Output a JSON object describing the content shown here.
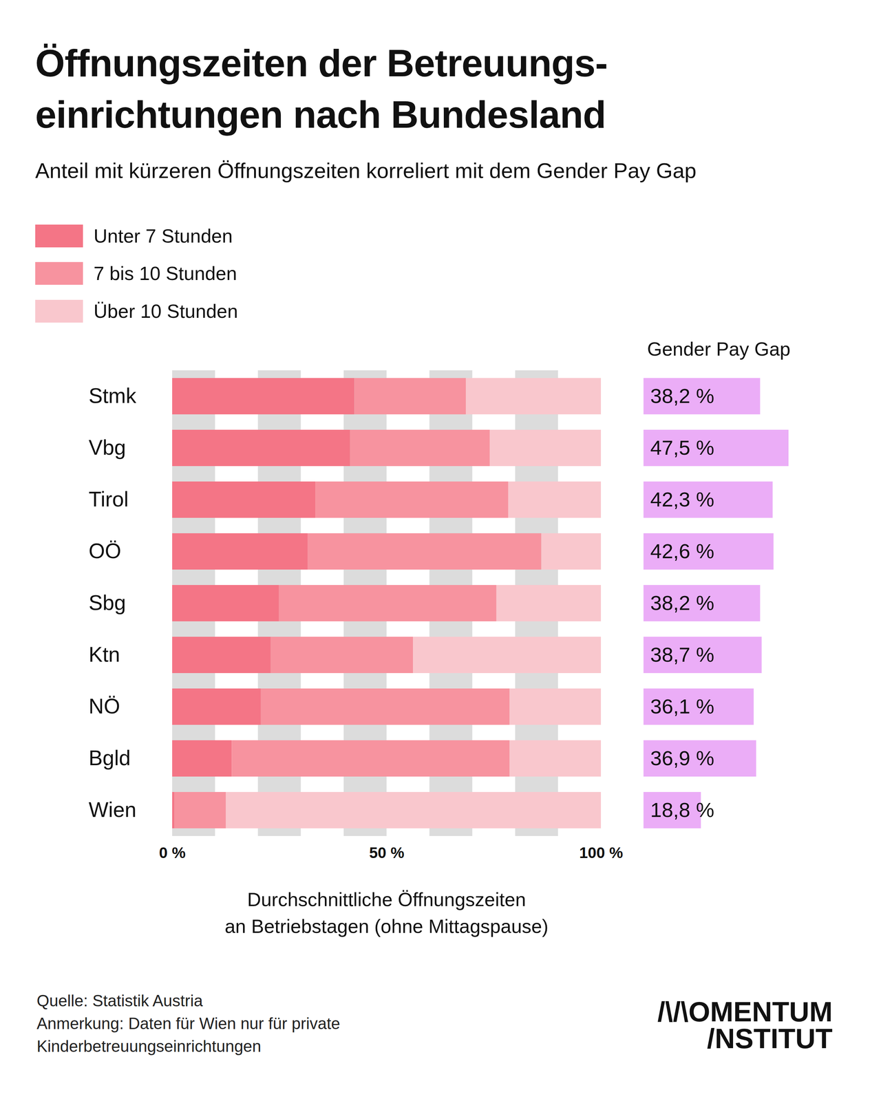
{
  "chart_data": [
    {
      "type": "bar",
      "orientation": "horizontal",
      "stacked": true,
      "title": "Öffnungszeiten der Betreuungs-\neinrichtungen nach Bundesland",
      "subtitle": "Anteil mit kürzeren Öffnungszeiten korreliert mit dem Gender Pay Gap",
      "xlabel": "Durchschnittliche Öffnungszeiten\nan Betriebstagen (ohne Mittagspause)",
      "categories": [
        "Stmk",
        "Vbg",
        "Tirol",
        "OÖ",
        "Sbg",
        "Ktn",
        "NÖ",
        "Bgld",
        "Wien"
      ],
      "series": [
        {
          "name": "Unter 7 Stunden",
          "color": "#f47586",
          "values": [
            42.5,
            41.5,
            33.4,
            31.6,
            24.9,
            23.0,
            20.7,
            13.9,
            0.5
          ]
        },
        {
          "name": "7 bis 10 Stunden",
          "color": "#f7939f",
          "values": [
            26.0,
            32.6,
            45.0,
            54.5,
            50.7,
            33.2,
            58.0,
            64.8,
            12.0
          ]
        },
        {
          "name": "Über 10 Stunden",
          "color": "#f9c7cd",
          "values": [
            31.5,
            25.9,
            21.6,
            13.9,
            24.4,
            43.8,
            21.3,
            21.3,
            87.5
          ]
        }
      ],
      "xlim": [
        0,
        100
      ],
      "xticks": [
        {
          "value": 0,
          "label": "0 %"
        },
        {
          "value": 50,
          "label": "50 %"
        },
        {
          "value": 100,
          "label": "100 %"
        }
      ],
      "grid": true,
      "legend": "top-left"
    },
    {
      "type": "bar",
      "orientation": "horizontal",
      "title": "Gender Pay Gap",
      "categories": [
        "Stmk",
        "Vbg",
        "Tirol",
        "OÖ",
        "Sbg",
        "Ktn",
        "NÖ",
        "Bgld",
        "Wien"
      ],
      "values": [
        38.2,
        47.5,
        42.3,
        42.6,
        38.2,
        38.7,
        36.1,
        36.9,
        18.8
      ],
      "value_labels": [
        "38,2 %",
        "47,5 %",
        "42,3 %",
        "42,6 %",
        "38,2 %",
        "38,7 %",
        "36,1 %",
        "36,9 %",
        "18,8 %"
      ],
      "color": "#ebadf7",
      "xlim": [
        0,
        47.5
      ],
      "data_labels": true,
      "tick_labels": false
    }
  ],
  "source": "Quelle: Statistik Austria\nAnmerkung: Daten für Wien nur für private\nKinderbetreuungseinrichtungen",
  "logo": "/\\/\\OMENTUM\n/NSTITUT"
}
